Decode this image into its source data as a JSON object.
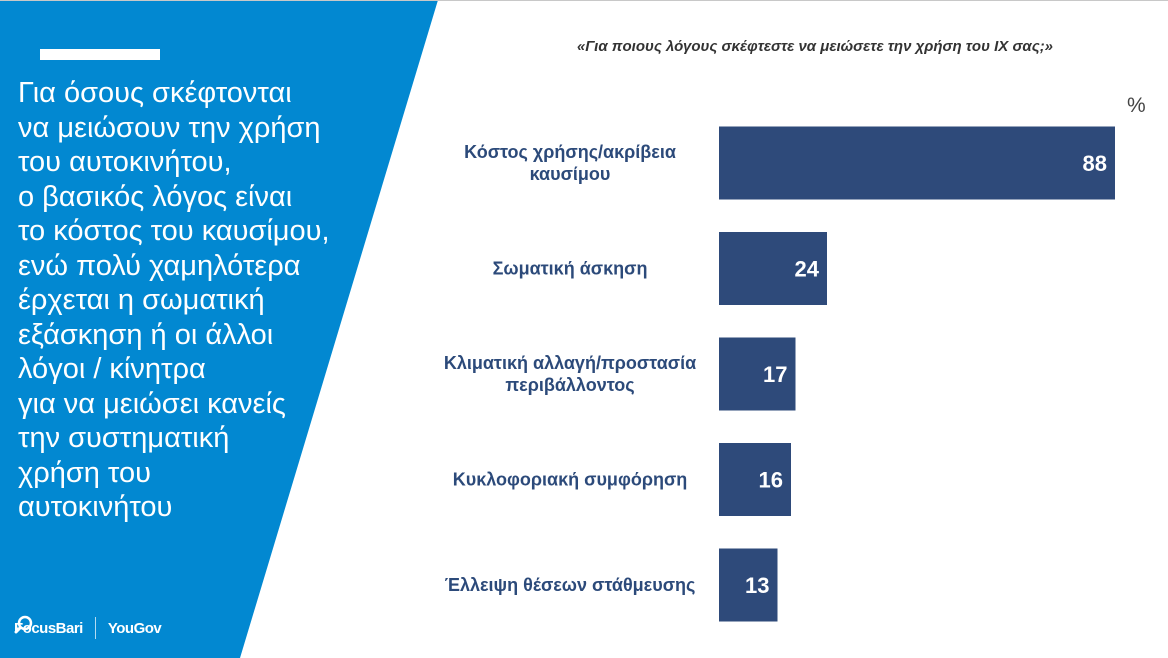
{
  "left_panel": {
    "text": "Για όσους σκέφτονται\nνα μειώσουν την χρήση\nτου αυτοκινήτου,\nο βασικός λόγος είναι\nτο κόστος του καυσίμου,\nενώ πολύ χαμηλότερα\nέρχεται η σωματική\nεξάσκηση ή οι άλλοι\nλόγοι / κίνητρα\nγια να μειώσει κανείς\nτην συστηματική\nχρήση του\nαυτοκινήτου",
    "logos": {
      "focus": "FocusBari",
      "yougov": "YouGov"
    },
    "background_color": "#0288d1"
  },
  "chart_data": {
    "type": "bar",
    "orientation": "horizontal",
    "title": "«Για ποιους λόγους σκέφτεστε να μειώσετε την χρήση του ΙΧ σας;»",
    "unit": "%",
    "categories": [
      [
        "Κόστος χρήσης/ακρίβεια",
        "καυσίμου"
      ],
      [
        "Σωματική άσκηση"
      ],
      [
        "Κλιματική αλλαγή/προστασία",
        "περιβάλλοντος"
      ],
      [
        "Κυκλοφοριακή συμφόρηση"
      ],
      [
        "Έλλειψη θέσεων στάθμευσης"
      ]
    ],
    "values": [
      88,
      24,
      17,
      16,
      13
    ],
    "xlim": [
      0,
      100
    ],
    "bar_color": "#2e4a7a",
    "grid": false,
    "legend": "none"
  }
}
